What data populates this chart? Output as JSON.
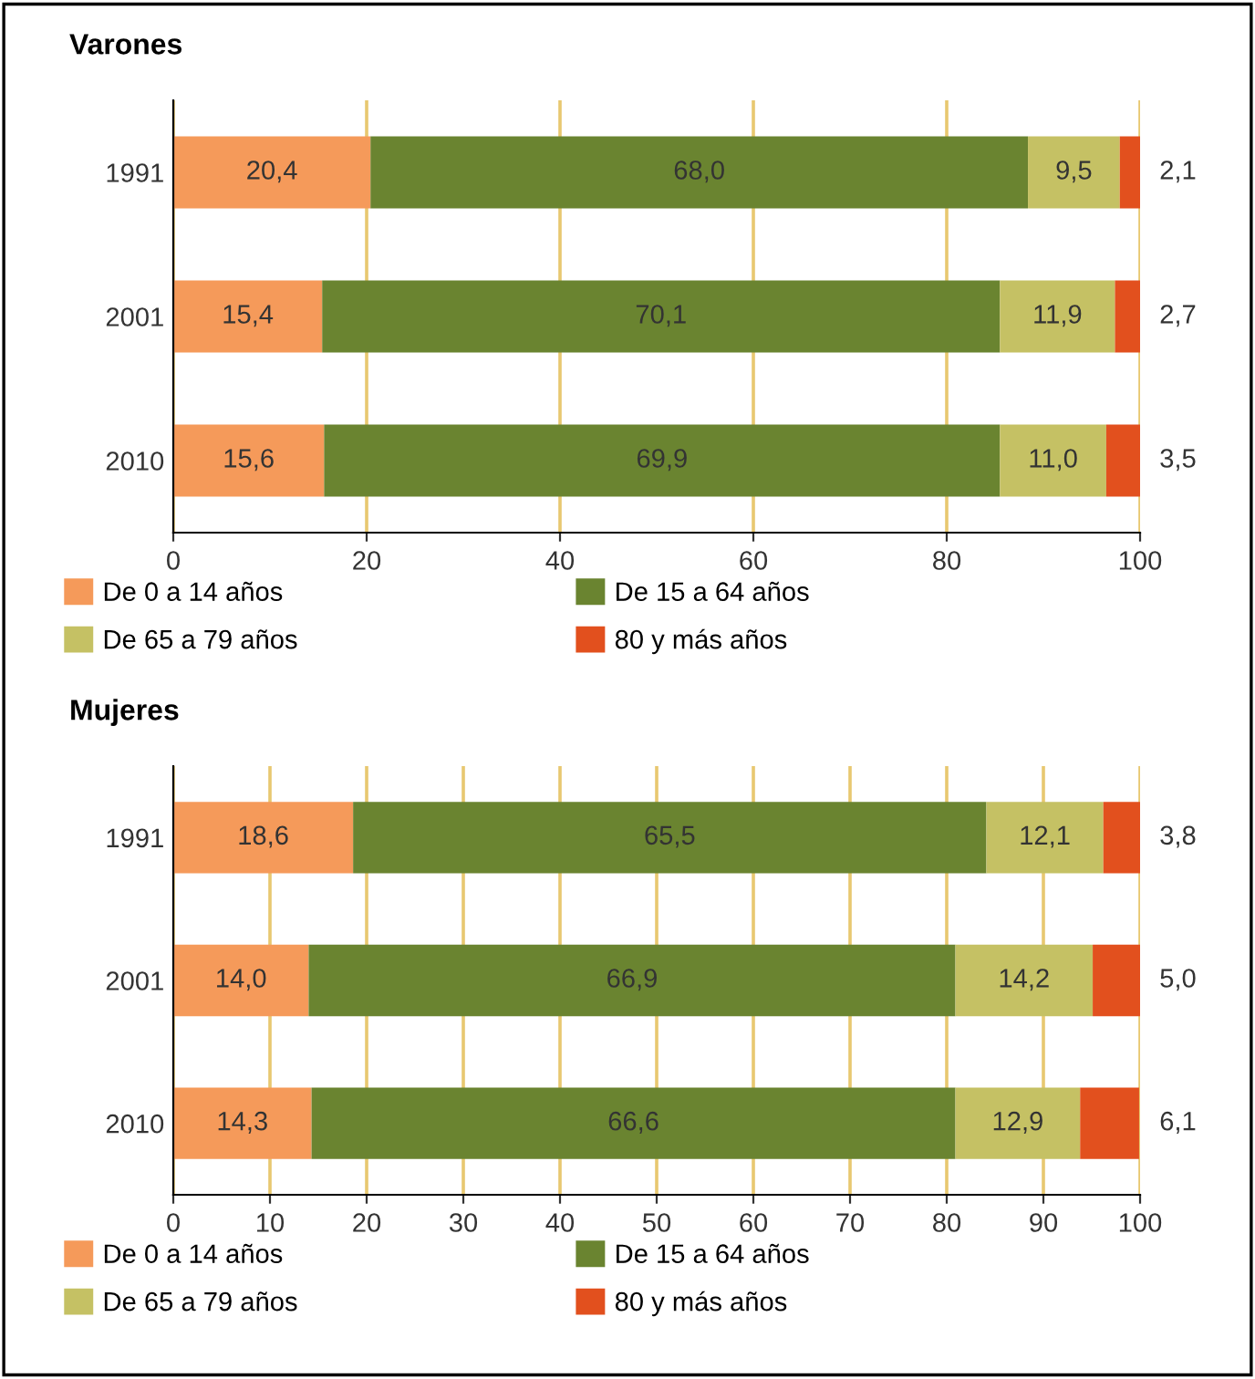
{
  "chart_data": [
    {
      "type": "bar",
      "title": "Varones",
      "orientation": "horizontal",
      "stacked": true,
      "categories": [
        "1991",
        "2001",
        "2010"
      ],
      "xlim": [
        0,
        100
      ],
      "xticks": [
        0,
        20,
        40,
        60,
        80,
        100
      ],
      "grid": "x",
      "legend": "bottom",
      "series": [
        {
          "name": "De 0 a 14 años",
          "color": "#f59a5a",
          "values": [
            20.4,
            15.4,
            15.6
          ],
          "value_labels": [
            "20,4",
            "15,4",
            "15,6"
          ]
        },
        {
          "name": "De 15 a 64 años",
          "color": "#6a8430",
          "values": [
            68.0,
            70.1,
            69.9
          ],
          "value_labels": [
            "68,0",
            "70,1",
            "69,9"
          ]
        },
        {
          "name": "De 65 a 79 años",
          "color": "#c5c164",
          "values": [
            9.5,
            11.9,
            11.0
          ],
          "value_labels": [
            "9,5",
            "11,9",
            "11,0"
          ]
        },
        {
          "name": "80 y más años",
          "color": "#e2501e",
          "values": [
            2.1,
            2.7,
            3.5
          ],
          "value_labels": [
            "2,1",
            "2,7",
            "3,5"
          ]
        }
      ]
    },
    {
      "type": "bar",
      "title": "Mujeres",
      "orientation": "horizontal",
      "stacked": true,
      "categories": [
        "1991",
        "2001",
        "2010"
      ],
      "xlim": [
        0,
        100
      ],
      "xticks": [
        0,
        10,
        20,
        30,
        40,
        50,
        60,
        70,
        80,
        90,
        100
      ],
      "grid": "x",
      "legend": "bottom",
      "series": [
        {
          "name": "De 0 a 14 años",
          "color": "#f59a5a",
          "values": [
            18.6,
            14.0,
            14.3
          ],
          "value_labels": [
            "18,6",
            "14,0",
            "14,3"
          ]
        },
        {
          "name": "De 15 a 64 años",
          "color": "#6a8430",
          "values": [
            65.5,
            66.9,
            66.6
          ],
          "value_labels": [
            "65,5",
            "66,9",
            "66,6"
          ]
        },
        {
          "name": "De 65 a 79 años",
          "color": "#c5c164",
          "values": [
            12.1,
            14.2,
            12.9
          ],
          "value_labels": [
            "12,1",
            "14,2",
            "12,9"
          ]
        },
        {
          "name": "80 y más años",
          "color": "#e2501e",
          "values": [
            3.8,
            5.0,
            6.1
          ],
          "value_labels": [
            "3,8",
            "5,0",
            "6,1"
          ]
        }
      ]
    }
  ]
}
